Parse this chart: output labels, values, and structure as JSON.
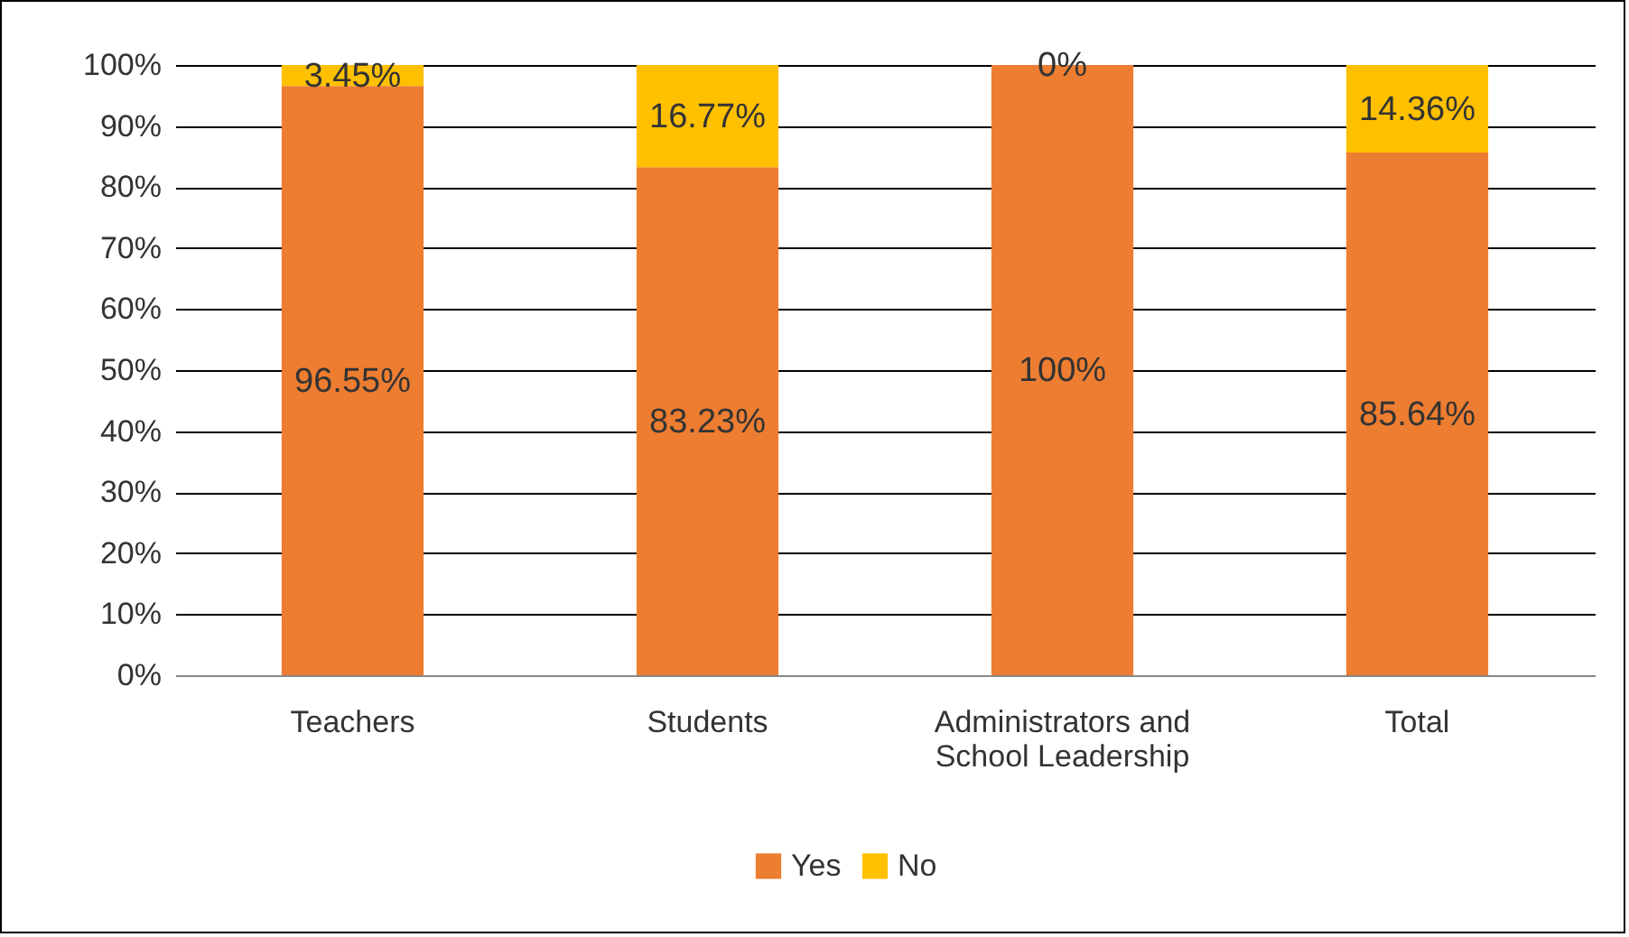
{
  "chart_data": {
    "type": "bar",
    "stacked": true,
    "categories": [
      "Teachers",
      "Students",
      "Administrators and School Leadership",
      "Total"
    ],
    "series": [
      {
        "name": "Yes",
        "color": "#ed7d31",
        "values": [
          96.55,
          83.23,
          100,
          85.64
        ],
        "value_labels": [
          "96.55%",
          "83.23%",
          "100%",
          "85.64%"
        ]
      },
      {
        "name": "No",
        "color": "#ffc000",
        "values": [
          3.45,
          16.77,
          0,
          14.36
        ],
        "value_labels": [
          "3.45%",
          "16.77%",
          "0%",
          "14.36%"
        ]
      }
    ],
    "ylim": [
      0,
      100
    ],
    "yticks": [
      {
        "value": 0,
        "label": "0%"
      },
      {
        "value": 10,
        "label": "10%"
      },
      {
        "value": 20,
        "label": "20%"
      },
      {
        "value": 30,
        "label": "30%"
      },
      {
        "value": 40,
        "label": "40%"
      },
      {
        "value": 50,
        "label": "50%"
      },
      {
        "value": 60,
        "label": "60%"
      },
      {
        "value": 70,
        "label": "70%"
      },
      {
        "value": 80,
        "label": "80%"
      },
      {
        "value": 90,
        "label": "90%"
      },
      {
        "value": 100,
        "label": "100%"
      }
    ],
    "grid": "y",
    "legend": "bottom"
  }
}
